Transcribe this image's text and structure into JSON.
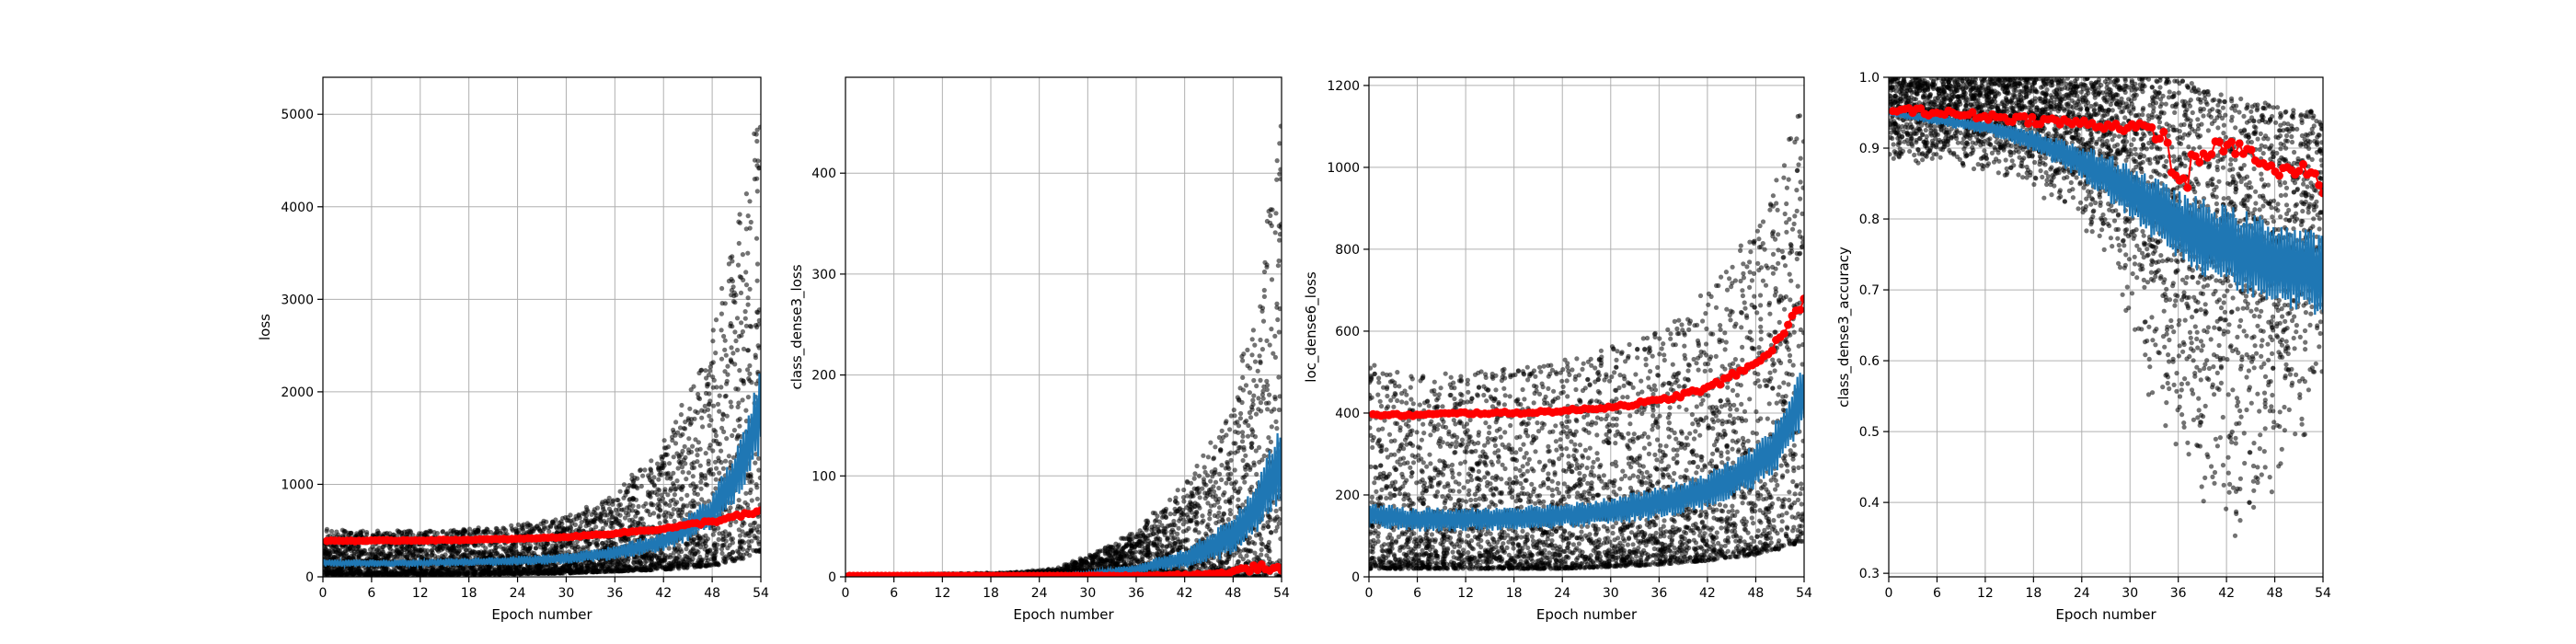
{
  "figure": {
    "background": "#ffffff"
  },
  "colors": {
    "scatter": "#000000",
    "train": "#1f77b4",
    "validation": "#ff0000",
    "grid": "#b0b0b0"
  },
  "chart_data": [
    {
      "type": "scatter",
      "xlabel": "Epoch number",
      "ylabel": "loss",
      "xlim": [
        0,
        54
      ],
      "ylim": [
        0,
        5400
      ],
      "xticks": [
        0,
        6,
        12,
        18,
        24,
        30,
        36,
        42,
        48,
        54
      ],
      "yticks": [
        0,
        1000,
        2000,
        3000,
        4000,
        5000
      ],
      "grid": true,
      "series": [
        {
          "kind": "points",
          "color": "#000000",
          "x": [
            0,
            6,
            12,
            18,
            24,
            30,
            36,
            42,
            48,
            51,
            53,
            54
          ],
          "lower": [
            20,
            20,
            20,
            25,
            30,
            40,
            60,
            80,
            120,
            180,
            250,
            300
          ],
          "upper": [
            520,
            500,
            500,
            520,
            560,
            650,
            900,
            1400,
            2600,
            3800,
            4600,
            5150
          ]
        },
        {
          "kind": "line",
          "color": "#1f77b4",
          "x": [
            0,
            6,
            12,
            18,
            24,
            30,
            36,
            42,
            48,
            51,
            54
          ],
          "y": [
            150,
            145,
            150,
            160,
            175,
            200,
            260,
            380,
            700,
            1100,
            1800
          ],
          "ripple": [
            40,
            40,
            40,
            45,
            50,
            60,
            80,
            110,
            200,
            300,
            450
          ]
        },
        {
          "kind": "markers",
          "color": "#ff0000",
          "x": [
            0,
            6,
            12,
            18,
            24,
            30,
            36,
            42,
            48,
            51,
            54
          ],
          "y": [
            390,
            390,
            395,
            400,
            410,
            430,
            470,
            520,
            600,
            650,
            700
          ],
          "ripple": [
            5,
            5,
            5,
            5,
            5,
            5,
            8,
            10,
            20,
            25,
            30
          ]
        }
      ]
    },
    {
      "type": "scatter",
      "xlabel": "Epoch number",
      "ylabel": "class_dense3_loss",
      "xlim": [
        0,
        54
      ],
      "ylim": [
        0,
        495
      ],
      "xticks": [
        0,
        6,
        12,
        18,
        24,
        30,
        36,
        42,
        48,
        54
      ],
      "yticks": [
        0,
        100,
        200,
        300,
        400
      ],
      "grid": true,
      "series": [
        {
          "kind": "points",
          "color": "#000000",
          "x": [
            0,
            12,
            20,
            26,
            30,
            36,
            42,
            48,
            51,
            53,
            54
          ],
          "lower": [
            0,
            0,
            0,
            0,
            0,
            0,
            0,
            0,
            0,
            0,
            0
          ],
          "upper": [
            2,
            3,
            4,
            8,
            20,
            45,
            90,
            170,
            280,
            420,
            475
          ]
        },
        {
          "kind": "line",
          "color": "#1f77b4",
          "x": [
            0,
            24,
            30,
            36,
            42,
            48,
            51,
            54
          ],
          "y": [
            0.5,
            1,
            3,
            8,
            18,
            40,
            70,
            115
          ],
          "ripple": [
            0.3,
            0.5,
            2,
            5,
            10,
            20,
            28,
            40
          ]
        },
        {
          "kind": "markers",
          "color": "#ff0000",
          "x": [
            0,
            24,
            36,
            42,
            46,
            48,
            50,
            52,
            54
          ],
          "y": [
            1,
            1,
            1,
            2,
            3,
            5,
            8,
            10,
            6
          ],
          "ripple": [
            0,
            0,
            0.5,
            1,
            1,
            2,
            3,
            3,
            3
          ]
        }
      ]
    },
    {
      "type": "scatter",
      "xlabel": "Epoch number",
      "ylabel": "loc_dense6_loss",
      "xlim": [
        0,
        54
      ],
      "ylim": [
        0,
        1220
      ],
      "xticks": [
        0,
        6,
        12,
        18,
        24,
        30,
        36,
        42,
        48,
        54
      ],
      "yticks": [
        0,
        200,
        400,
        600,
        800,
        1000,
        1200
      ],
      "grid": true,
      "series": [
        {
          "kind": "points",
          "color": "#000000",
          "x": [
            0,
            6,
            12,
            18,
            24,
            30,
            36,
            42,
            48,
            51,
            54
          ],
          "lower": [
            20,
            20,
            20,
            20,
            20,
            25,
            30,
            40,
            55,
            70,
            90
          ],
          "upper": [
            520,
            500,
            500,
            510,
            530,
            560,
            600,
            700,
            850,
            1000,
            1170
          ]
        },
        {
          "kind": "line",
          "color": "#1f77b4",
          "x": [
            0,
            6,
            12,
            18,
            24,
            30,
            36,
            42,
            48,
            51,
            54
          ],
          "y": [
            150,
            140,
            140,
            145,
            150,
            160,
            180,
            210,
            270,
            330,
            450
          ],
          "ripple": [
            30,
            30,
            30,
            30,
            32,
            35,
            40,
            45,
            55,
            65,
            80
          ]
        },
        {
          "kind": "markers",
          "color": "#ff0000",
          "x": [
            0,
            6,
            12,
            18,
            24,
            30,
            36,
            42,
            48,
            51,
            54
          ],
          "y": [
            395,
            395,
            400,
            400,
            405,
            415,
            430,
            460,
            520,
            580,
            680
          ],
          "ripple": [
            3,
            3,
            3,
            3,
            3,
            4,
            5,
            6,
            8,
            10,
            12
          ]
        }
      ]
    },
    {
      "type": "scatter",
      "xlabel": "Epoch number",
      "ylabel": "class_dense3_accuracy",
      "xlim": [
        0,
        54
      ],
      "ylim": [
        0.295,
        1.0
      ],
      "xticks": [
        0,
        6,
        12,
        18,
        24,
        30,
        36,
        42,
        48,
        54
      ],
      "yticks": [
        0.3,
        0.4,
        0.5,
        0.6,
        0.7,
        0.8,
        0.9,
        1.0
      ],
      "grid": true,
      "series": [
        {
          "kind": "points",
          "color": "#000000",
          "x": [
            0,
            6,
            12,
            18,
            24,
            28,
            32,
            36,
            40,
            44,
            48,
            54
          ],
          "lower": [
            0.88,
            0.87,
            0.86,
            0.84,
            0.79,
            0.72,
            0.55,
            0.45,
            0.38,
            0.33,
            0.4,
            0.55
          ],
          "upper": [
            1.0,
            1.0,
            1.0,
            1.0,
            1.0,
            1.0,
            1.0,
            1.0,
            0.98,
            0.97,
            0.96,
            0.95
          ]
        },
        {
          "kind": "line",
          "color": "#1f77b4",
          "x": [
            0,
            6,
            12,
            18,
            24,
            30,
            36,
            42,
            48,
            54
          ],
          "y": [
            0.95,
            0.94,
            0.93,
            0.91,
            0.88,
            0.84,
            0.79,
            0.76,
            0.74,
            0.72
          ],
          "ripple": [
            0.005,
            0.008,
            0.01,
            0.015,
            0.025,
            0.04,
            0.05,
            0.06,
            0.06,
            0.06
          ]
        },
        {
          "kind": "markers",
          "color": "#ff0000",
          "x": [
            0,
            6,
            12,
            18,
            24,
            30,
            34,
            36,
            40,
            44,
            48,
            52,
            54
          ],
          "y": [
            0.955,
            0.95,
            0.945,
            0.94,
            0.935,
            0.93,
            0.92,
            0.85,
            0.9,
            0.9,
            0.865,
            0.87,
            0.845
          ],
          "ripple": [
            0.004,
            0.005,
            0.005,
            0.006,
            0.006,
            0.008,
            0.01,
            0.03,
            0.01,
            0.01,
            0.01,
            0.01,
            0.01
          ]
        }
      ]
    }
  ]
}
